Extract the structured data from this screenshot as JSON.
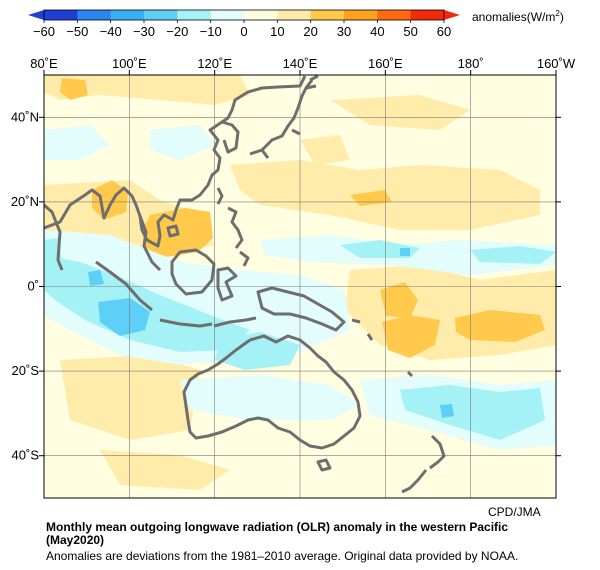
{
  "colorbar": {
    "ticks": [
      "−60",
      "−50",
      "−40",
      "−30",
      "−20",
      "−10",
      "0",
      "10",
      "20",
      "30",
      "40",
      "50",
      "60"
    ],
    "colors": [
      "#1f3fd6",
      "#2b86f0",
      "#39b0f5",
      "#5ecff6",
      "#a5f2f6",
      "#e3fcfc",
      "#fffee0",
      "#ffecab",
      "#ffc94c",
      "#ffa31c",
      "#ff6a10",
      "#f22a0a"
    ],
    "unit_label": "anomalies(W/m",
    "unit_sup": "2",
    "unit_close": ")"
  },
  "map": {
    "lon_labels": [
      "80˚E",
      "100˚E",
      "120˚E",
      "140˚E",
      "160˚E",
      "180˚",
      "160˚W"
    ],
    "lat_labels": [
      "40˚N",
      "20˚N",
      "0˚",
      "20˚S",
      "40˚S"
    ],
    "lon_range": [
      80,
      200
    ],
    "lat_range": [
      -50,
      50
    ],
    "grid": true,
    "colors": {
      "background": "#fffee0",
      "light_yellow": "#ffecab",
      "orange": "#ffc94c",
      "light_cyan": "#e3fcfc",
      "cyan": "#a5f2f6",
      "mid_cyan": "#5ecff6",
      "coast": "#6e6e6e"
    }
  },
  "credit": "CPD/JMA",
  "title_line1": "Monthly mean outgoing longwave radiation (OLR) anomaly in the western Pacific",
  "title_line2": "(May2020)",
  "note": "Anomalies are deviations from the 1981–2010 average. Original data provided by NOAA."
}
